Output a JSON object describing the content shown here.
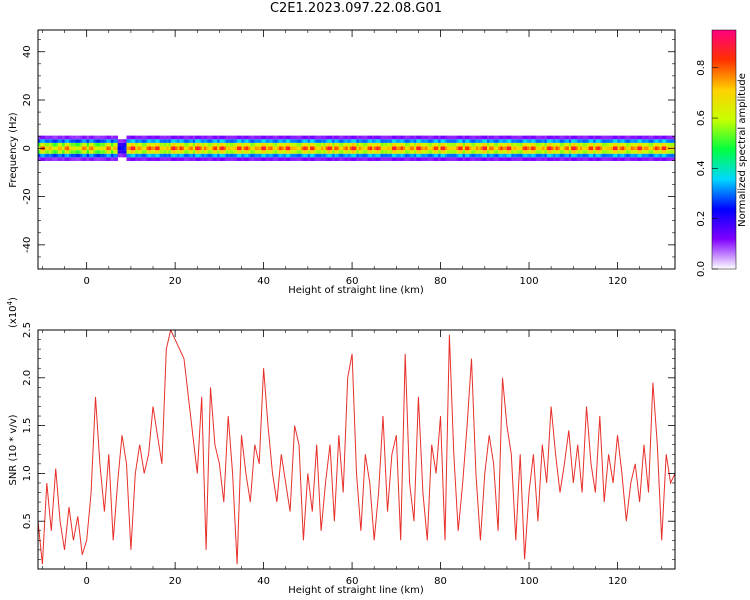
{
  "title": "C2E1.2023.097.22.08.G01",
  "chart_data": [
    {
      "type": "heatmap",
      "xlabel": "Height of straight line (km)",
      "ylabel": "Frequency (Hz)",
      "xlim": [
        -11,
        133
      ],
      "ylim": [
        -50,
        49
      ],
      "xticks": [
        0,
        20,
        40,
        60,
        80,
        100,
        120
      ],
      "yticks": [
        -40,
        -20,
        0,
        20,
        40
      ],
      "colorbar": {
        "label": "Normalized spectral amplitude",
        "range": [
          0.0,
          0.95
        ],
        "ticks": [
          0.0,
          0.2,
          0.4,
          0.6,
          0.8
        ],
        "colors": [
          "#ffffff",
          "#8000ff",
          "#0000ff",
          "#00d8ff",
          "#00ff40",
          "#c8ff00",
          "#ffd000",
          "#ff3000",
          "#ff0080"
        ]
      },
      "band": {
        "center_freq_hz": 0,
        "half_width_hz": 3,
        "segments": [
          {
            "x": [
              -11,
              7
            ],
            "peak": 0.82
          },
          {
            "x": [
              7,
              9
            ],
            "peak": 0.3
          },
          {
            "x": [
              9,
              133
            ],
            "peak": 0.9
          }
        ]
      }
    },
    {
      "type": "line",
      "xlabel": "Height of straight line (km)",
      "ylabel": "SNR (10 * v/v)",
      "ymultiplier": "(x10",
      "ymultiplier_exp": "4",
      "ymultiplier_close": ")",
      "xlim": [
        -11,
        133
      ],
      "ylim": [
        0,
        2.5
      ],
      "xticks": [
        0,
        20,
        40,
        60,
        80,
        100,
        120
      ],
      "yticks": [
        0.5,
        1.0,
        1.5,
        2.0,
        2.5
      ],
      "color": "#e8302a",
      "series": [
        {
          "x": [
            -11,
            -10,
            -9,
            -8,
            -7,
            -6,
            -5,
            -4,
            -3,
            -2,
            -1,
            0,
            1,
            2,
            3,
            4,
            5,
            6,
            7,
            8,
            9,
            10,
            11,
            12,
            13,
            14,
            15,
            16,
            17,
            18,
            19,
            20,
            21,
            22,
            23,
            24,
            25,
            26,
            27,
            28,
            29,
            30,
            31,
            32,
            33,
            34,
            35,
            36,
            37,
            38,
            39,
            40,
            41,
            42,
            43,
            44,
            45,
            46,
            47,
            48,
            49,
            50,
            51,
            52,
            53,
            54,
            55,
            56,
            57,
            58,
            59,
            60,
            61,
            62,
            63,
            64,
            65,
            66,
            67,
            68,
            69,
            70,
            71,
            72,
            73,
            74,
            75,
            76,
            77,
            78,
            79,
            80,
            81,
            82,
            83,
            84,
            85,
            86,
            87,
            88,
            89,
            90,
            91,
            92,
            93,
            94,
            95,
            96,
            97,
            98,
            99,
            100,
            101,
            102,
            103,
            104,
            105,
            106,
            107,
            108,
            109,
            110,
            111,
            112,
            113,
            114,
            115,
            116,
            117,
            118,
            119,
            120,
            121,
            122,
            123,
            124,
            125,
            126,
            127,
            128,
            129,
            130,
            131,
            132,
            133
          ],
          "values": [
            0.5,
            0.05,
            0.9,
            0.4,
            1.05,
            0.5,
            0.2,
            0.65,
            0.3,
            0.55,
            0.15,
            0.3,
            0.8,
            1.8,
            1.1,
            0.6,
            1.2,
            0.3,
            0.9,
            1.4,
            1.1,
            0.2,
            1.0,
            1.3,
            1.0,
            1.2,
            1.7,
            1.4,
            1.1,
            2.3,
            2.5,
            2.4,
            2.3,
            2.2,
            1.8,
            1.4,
            1.0,
            1.8,
            0.2,
            1.9,
            1.3,
            1.1,
            0.7,
            1.6,
            1.0,
            0.05,
            1.4,
            1.0,
            0.7,
            1.3,
            1.1,
            2.1,
            1.5,
            1.0,
            0.7,
            1.2,
            0.9,
            0.6,
            1.5,
            1.3,
            0.3,
            1.0,
            0.6,
            1.3,
            0.4,
            0.9,
            1.3,
            0.5,
            1.4,
            0.8,
            2.0,
            2.25,
            1.0,
            0.4,
            1.2,
            0.9,
            0.3,
            0.8,
            1.6,
            0.6,
            1.2,
            1.4,
            0.3,
            2.25,
            0.9,
            0.5,
            1.8,
            0.8,
            0.3,
            1.3,
            1.0,
            1.6,
            0.3,
            2.45,
            1.2,
            0.4,
            0.9,
            1.5,
            2.2,
            1.0,
            0.3,
            1.0,
            1.4,
            1.1,
            0.4,
            2.0,
            1.5,
            1.2,
            0.3,
            1.2,
            0.1,
            0.8,
            1.2,
            0.5,
            1.3,
            0.9,
            1.7,
            1.2,
            0.8,
            1.1,
            1.45,
            0.9,
            1.3,
            0.8,
            1.7,
            1.1,
            0.8,
            1.6,
            0.7,
            1.2,
            0.9,
            1.4,
            1.0,
            0.5,
            0.9,
            1.1,
            0.7,
            1.3,
            0.8,
            1.95,
            1.3,
            0.3,
            1.2,
            0.9,
            1.0
          ]
        }
      ]
    }
  ]
}
